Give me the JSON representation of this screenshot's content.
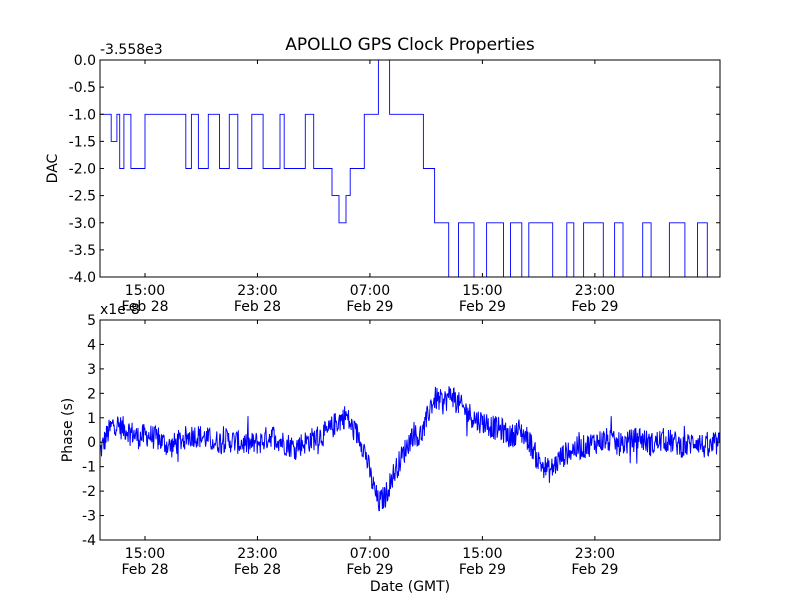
{
  "title": "APOLLO GPS Clock Properties",
  "colors": {
    "line": "#0000ff",
    "frame": "#000000",
    "background": "#ffffff"
  },
  "chart_data": [
    {
      "type": "line",
      "name": "dac",
      "ylabel": "DAC",
      "offset_label": "-3.558e3",
      "ylim": [
        -4.0,
        0.0
      ],
      "yticks": [
        0.0,
        -0.5,
        -1.0,
        -1.5,
        -2.0,
        -2.5,
        -3.0,
        -3.5,
        -4.0
      ],
      "ytick_labels": [
        "0.0",
        "-0.5",
        "-1.0",
        "-1.5",
        "-2.0",
        "-2.5",
        "-3.0",
        "-3.5",
        "-4.0"
      ],
      "xlim_hours": [
        11.8,
        55.9
      ],
      "xticks_hours": [
        15,
        23,
        31,
        39,
        47
      ],
      "xtick_times": [
        "15:00",
        "23:00",
        "07:00",
        "15:00",
        "23:00"
      ],
      "xtick_dates": [
        "Feb 28",
        "Feb 28",
        "Feb 29",
        "Feb 29",
        "Feb 29"
      ],
      "series": [
        {
          "name": "DAC",
          "x_hours": [
            11.8,
            12.6,
            13.0,
            13.2,
            13.5,
            13.8,
            14.0,
            15.0,
            15.8,
            17.1,
            17.9,
            18.3,
            18.8,
            19.5,
            20.3,
            21.0,
            21.6,
            22.6,
            23.4,
            24.6,
            24.9,
            25.6,
            26.4,
            26.8,
            27.0,
            27.6,
            28.3,
            28.8,
            29.3,
            29.6,
            30.6,
            31.6,
            32.4,
            34.1,
            34.8,
            35.3,
            35.6,
            36.0,
            36.6,
            37.3,
            38.4,
            39.3,
            40.5,
            41.0,
            41.8,
            42.3,
            43.0,
            44.0,
            45.0,
            45.5,
            46.2,
            47.0,
            47.6,
            48.4,
            49.0,
            50.4,
            51.0,
            52.3,
            53.4,
            54.3,
            55.0,
            55.9
          ],
          "values": [
            -1.0,
            -1.5,
            -1.0,
            -2.0,
            -1.0,
            -1.0,
            -2.0,
            -1.0,
            -1.0,
            -1.0,
            -2.0,
            -1.0,
            -2.0,
            -1.0,
            -2.0,
            -1.0,
            -2.0,
            -1.0,
            -2.0,
            -1.0,
            -2.0,
            -2.0,
            -1.0,
            -1.0,
            -2.0,
            -2.0,
            -2.5,
            -3.0,
            -2.5,
            -2.0,
            -1.0,
            0.0,
            -1.0,
            -1.0,
            -2.0,
            -2.0,
            -3.0,
            -3.0,
            -4.0,
            -3.0,
            -4.0,
            -3.0,
            -4.0,
            -3.0,
            -4.0,
            -3.0,
            -3.0,
            -4.0,
            -3.0,
            -4.0,
            -3.0,
            -3.0,
            -4.0,
            -3.0,
            -4.0,
            -3.0,
            -4.0,
            -3.0,
            -4.0,
            -3.0,
            -4.0,
            -3.0
          ]
        }
      ]
    },
    {
      "type": "line",
      "name": "phase",
      "ylabel": "Phase (s)",
      "offset_label": "x1e-8",
      "xlabel": "Date (GMT)",
      "ylim": [
        -4,
        5
      ],
      "yticks": [
        5,
        4,
        3,
        2,
        1,
        0,
        -1,
        -2,
        -3,
        -4
      ],
      "ytick_labels": [
        "5",
        "4",
        "3",
        "2",
        "1",
        "0",
        "-1",
        "-2",
        "-3",
        "-4"
      ],
      "xlim_hours": [
        11.8,
        55.9
      ],
      "xticks_hours": [
        15,
        23,
        31,
        39,
        47
      ],
      "xtick_times": [
        "15:00",
        "23:00",
        "07:00",
        "15:00",
        "23:00"
      ],
      "xtick_dates": [
        "Feb 28",
        "Feb 28",
        "Feb 29",
        "Feb 29",
        "Feb 29"
      ],
      "series": [
        {
          "name": "Phase",
          "x_hours": [
            11.8,
            12.3,
            12.8,
            13.3,
            13.8,
            14.5,
            15.2,
            16.0,
            16.8,
            17.6,
            18.4,
            19.2,
            20.0,
            20.8,
            21.6,
            22.4,
            23.2,
            24.0,
            24.8,
            25.6,
            26.4,
            27.2,
            28.0,
            28.6,
            29.3,
            29.8,
            30.3,
            30.7,
            31.1,
            31.6,
            32.1,
            32.6,
            33.1,
            33.6,
            34.1,
            34.5,
            34.9,
            35.3,
            35.7,
            36.2,
            36.8,
            37.4,
            38.0,
            38.6,
            39.2,
            39.8,
            40.4,
            41.0,
            41.6,
            42.3,
            43.0,
            43.8,
            44.6,
            45.4,
            46.2,
            47.0,
            47.8,
            48.6,
            49.4,
            50.2,
            51.0,
            51.8,
            52.6,
            53.4,
            54.2,
            55.0,
            55.9
          ],
          "values": [
            -0.4,
            0.3,
            0.8,
            0.6,
            0.5,
            0.2,
            0.3,
            0.1,
            -0.2,
            0.1,
            0.3,
            0.2,
            0.0,
            0.1,
            0.0,
            -0.1,
            0.0,
            0.3,
            0.0,
            -0.2,
            0.0,
            0.2,
            0.4,
            0.8,
            1.1,
            0.5,
            0.2,
            -0.5,
            -1.5,
            -2.5,
            -2.2,
            -1.4,
            -0.8,
            -0.2,
            0.4,
            0.2,
            0.6,
            1.5,
            1.8,
            1.6,
            2.0,
            1.5,
            1.2,
            0.9,
            0.8,
            0.6,
            0.5,
            0.2,
            0.5,
            0.1,
            -0.8,
            -1.2,
            -0.6,
            -0.3,
            -0.2,
            0.0,
            0.1,
            -0.1,
            0.0,
            0.2,
            -0.1,
            0.1,
            0.0,
            -0.2,
            0.1,
            -0.3,
            0.0
          ]
        }
      ]
    }
  ]
}
